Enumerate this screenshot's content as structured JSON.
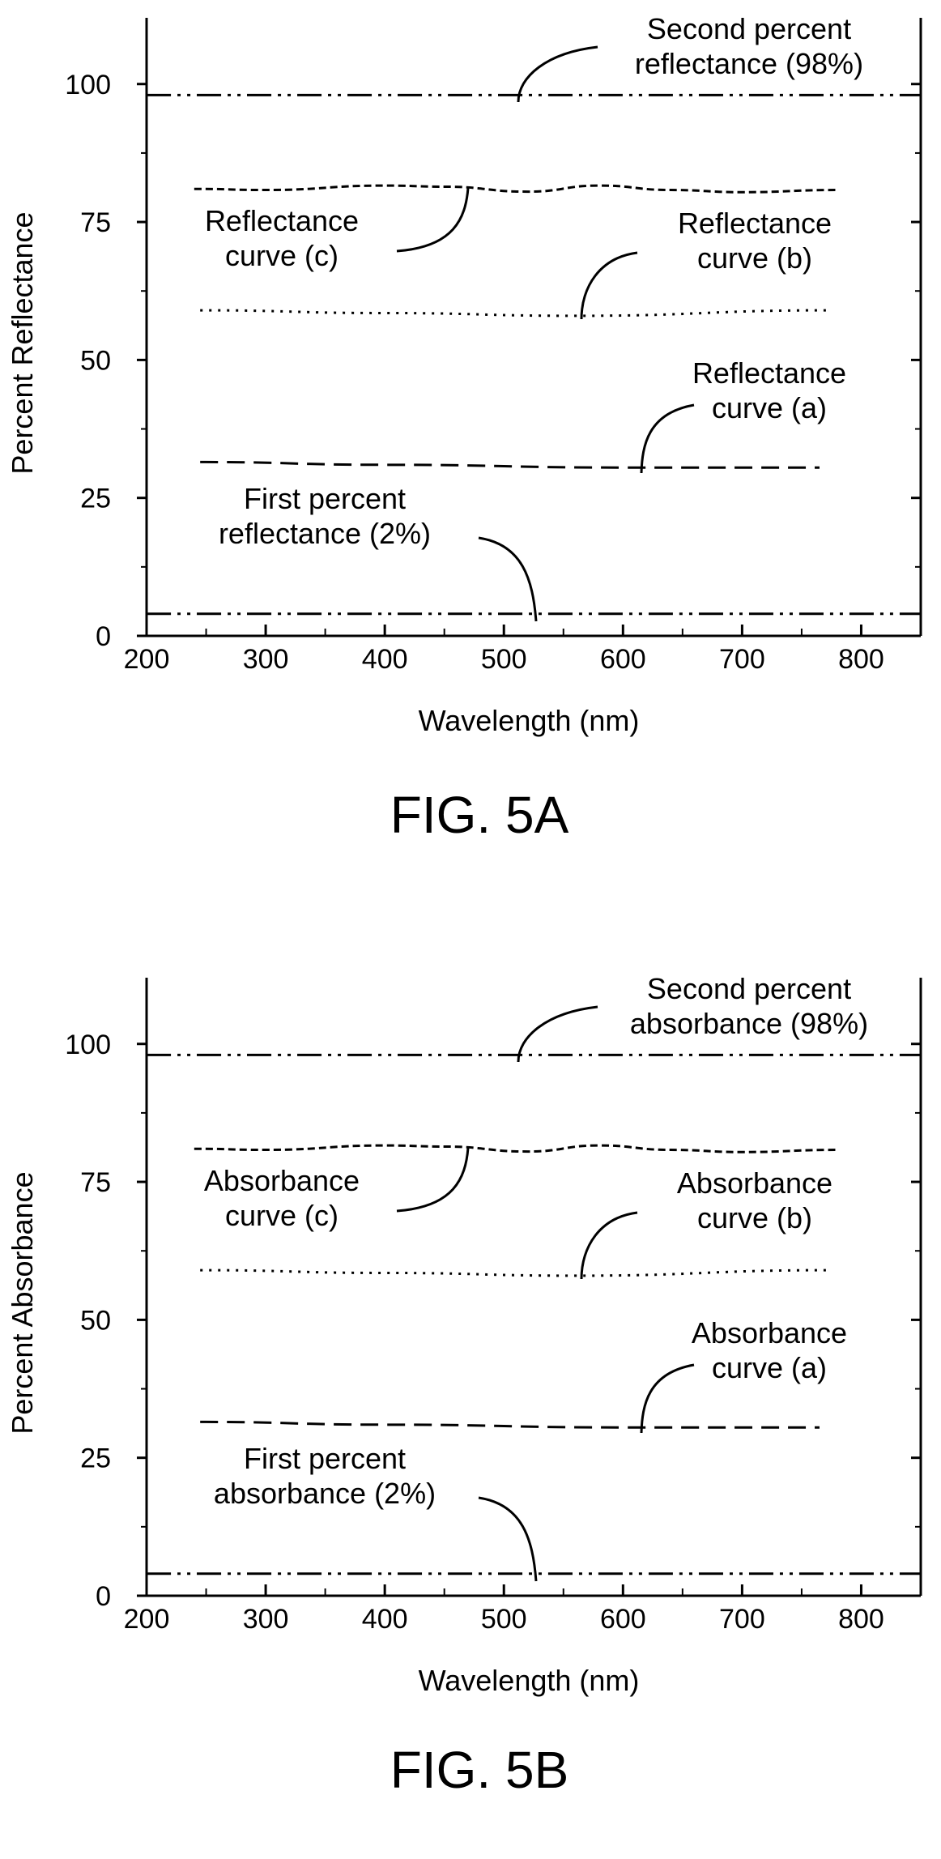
{
  "chart_data": [
    {
      "type": "line",
      "caption": "FIG. 5A",
      "xlabel": "Wavelength (nm)",
      "ylabel": "Percent Reflectance",
      "xlim": [
        200,
        850
      ],
      "ylim": [
        0,
        112
      ],
      "xticks": [
        200,
        300,
        400,
        500,
        600,
        700,
        800
      ],
      "yticks": [
        0,
        25,
        50,
        75,
        100
      ],
      "grid": false,
      "series": [
        {
          "name": "Second percent reflectance (98%)",
          "style": "dash-dot-dot",
          "x": [
            200,
            850
          ],
          "y": [
            98,
            98
          ]
        },
        {
          "name": "Reflectance curve (c)",
          "style": "short-dash",
          "x": [
            240,
            300,
            400,
            450,
            520,
            580,
            640,
            700,
            780
          ],
          "y": [
            81,
            80.8,
            81.6,
            81.4,
            80.5,
            81.6,
            80.8,
            80.4,
            80.8
          ]
        },
        {
          "name": "Reflectance curve (b)",
          "style": "dotted",
          "x": [
            245,
            400,
            560,
            775
          ],
          "y": [
            59,
            58.5,
            58,
            59
          ]
        },
        {
          "name": "Reflectance curve (a)",
          "style": "long-dash",
          "x": [
            245,
            400,
            600,
            765
          ],
          "y": [
            31.5,
            31,
            30.5,
            30.5
          ]
        },
        {
          "name": "First percent reflectance (2%)",
          "style": "dash-dot-dot",
          "x": [
            200,
            850
          ],
          "y": [
            4,
            4
          ]
        }
      ],
      "annotations": [
        {
          "lines": [
            "Second percent",
            "reflectance (98%)"
          ]
        },
        {
          "lines": [
            "Reflectance",
            "curve (c)"
          ]
        },
        {
          "lines": [
            "Reflectance",
            "curve (b)"
          ]
        },
        {
          "lines": [
            "Reflectance",
            "curve (a)"
          ]
        },
        {
          "lines": [
            "First percent",
            "reflectance (2%)"
          ]
        }
      ]
    },
    {
      "type": "line",
      "caption": "FIG. 5B",
      "xlabel": "Wavelength (nm)",
      "ylabel": "Percent Absorbance",
      "xlim": [
        200,
        850
      ],
      "ylim": [
        0,
        112
      ],
      "xticks": [
        200,
        300,
        400,
        500,
        600,
        700,
        800
      ],
      "yticks": [
        0,
        25,
        50,
        75,
        100
      ],
      "grid": false,
      "series": [
        {
          "name": "Second percent absorbance (98%)",
          "style": "dash-dot-dot",
          "x": [
            200,
            850
          ],
          "y": [
            98,
            98
          ]
        },
        {
          "name": "Absorbance curve (c)",
          "style": "short-dash",
          "x": [
            240,
            300,
            400,
            450,
            520,
            580,
            640,
            700,
            780
          ],
          "y": [
            81,
            80.8,
            81.6,
            81.4,
            80.5,
            81.6,
            80.8,
            80.4,
            80.8
          ]
        },
        {
          "name": "Absorbance curve (b)",
          "style": "dotted",
          "x": [
            245,
            400,
            560,
            775
          ],
          "y": [
            59,
            58.5,
            58,
            59
          ]
        },
        {
          "name": "Absorbance curve (a)",
          "style": "long-dash",
          "x": [
            245,
            400,
            600,
            765
          ],
          "y": [
            31.5,
            31,
            30.5,
            30.5
          ]
        },
        {
          "name": "First percent absorbance (2%)",
          "style": "dash-dot-dot",
          "x": [
            200,
            850
          ],
          "y": [
            4,
            4
          ]
        }
      ],
      "annotations": [
        {
          "lines": [
            "Second percent",
            "absorbance (98%)"
          ]
        },
        {
          "lines": [
            "Absorbance",
            "curve (c)"
          ]
        },
        {
          "lines": [
            "Absorbance",
            "curve (b)"
          ]
        },
        {
          "lines": [
            "Absorbance",
            "curve (a)"
          ]
        },
        {
          "lines": [
            "First percent",
            "absorbance (2%)"
          ]
        }
      ]
    }
  ]
}
